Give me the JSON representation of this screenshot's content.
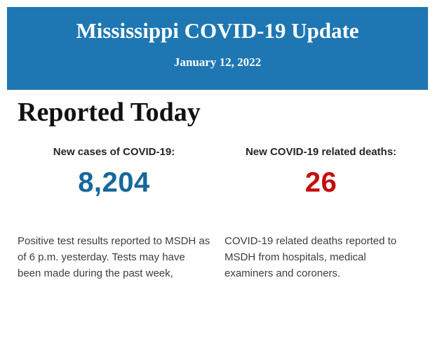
{
  "header": {
    "title": "Mississippi COVID-19 Update",
    "date": "January 12, 2022",
    "bg_color": "#1e77b2",
    "text_color": "#ffffff"
  },
  "body": {
    "heading": "Reported Today",
    "stats": [
      {
        "label": "New cases of COVID-19:",
        "value": "8,204",
        "value_color": "#15689b",
        "description": "Positive test results reported to MSDH as of 6 p.m. yesterday. Tests may have been made during the past week,"
      },
      {
        "label": "New COVID-19 related deaths:",
        "value": "26",
        "value_color": "#c60c0c",
        "description": "COVID-19 related deaths reported to MSDH from hospitals, medical examiners and coroners."
      }
    ]
  }
}
